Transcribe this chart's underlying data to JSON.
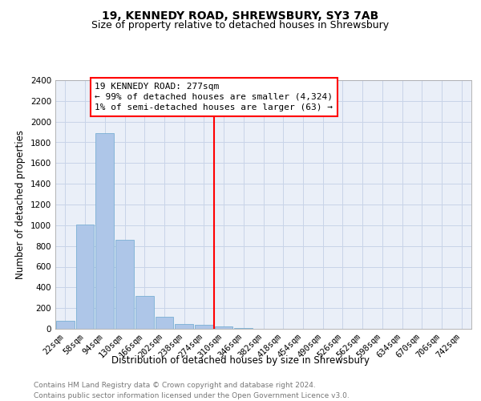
{
  "title": "19, KENNEDY ROAD, SHREWSBURY, SY3 7AB",
  "subtitle": "Size of property relative to detached houses in Shrewsbury",
  "xlabel": "Distribution of detached houses by size in Shrewsbury",
  "ylabel": "Number of detached properties",
  "bar_labels": [
    "22sqm",
    "58sqm",
    "94sqm",
    "130sqm",
    "166sqm",
    "202sqm",
    "238sqm",
    "274sqm",
    "310sqm",
    "346sqm",
    "382sqm",
    "418sqm",
    "454sqm",
    "490sqm",
    "526sqm",
    "562sqm",
    "598sqm",
    "634sqm",
    "670sqm",
    "706sqm",
    "742sqm"
  ],
  "bar_values": [
    80,
    1010,
    1890,
    860,
    315,
    115,
    50,
    35,
    25,
    10,
    0,
    0,
    0,
    0,
    0,
    0,
    0,
    0,
    0,
    0,
    0
  ],
  "bar_color": "#aec6e8",
  "bar_edge_color": "#7aafd4",
  "ylim": [
    0,
    2400
  ],
  "yticks": [
    0,
    200,
    400,
    600,
    800,
    1000,
    1200,
    1400,
    1600,
    1800,
    2000,
    2200,
    2400
  ],
  "property_label": "19 KENNEDY ROAD: 277sqm",
  "annotation_line1": "← 99% of detached houses are smaller (4,324)",
  "annotation_line2": "1% of semi-detached houses are larger (63) →",
  "vline_x_index": 7.5,
  "footer_line1": "Contains HM Land Registry data © Crown copyright and database right 2024.",
  "footer_line2": "Contains public sector information licensed under the Open Government Licence v3.0.",
  "background_color": "#ffffff",
  "plot_bg_color": "#eaeff8",
  "grid_color": "#c8d4e8",
  "title_fontsize": 10,
  "subtitle_fontsize": 9,
  "axis_label_fontsize": 8.5,
  "tick_fontsize": 7.5,
  "annotation_fontsize": 8,
  "footer_fontsize": 6.5
}
